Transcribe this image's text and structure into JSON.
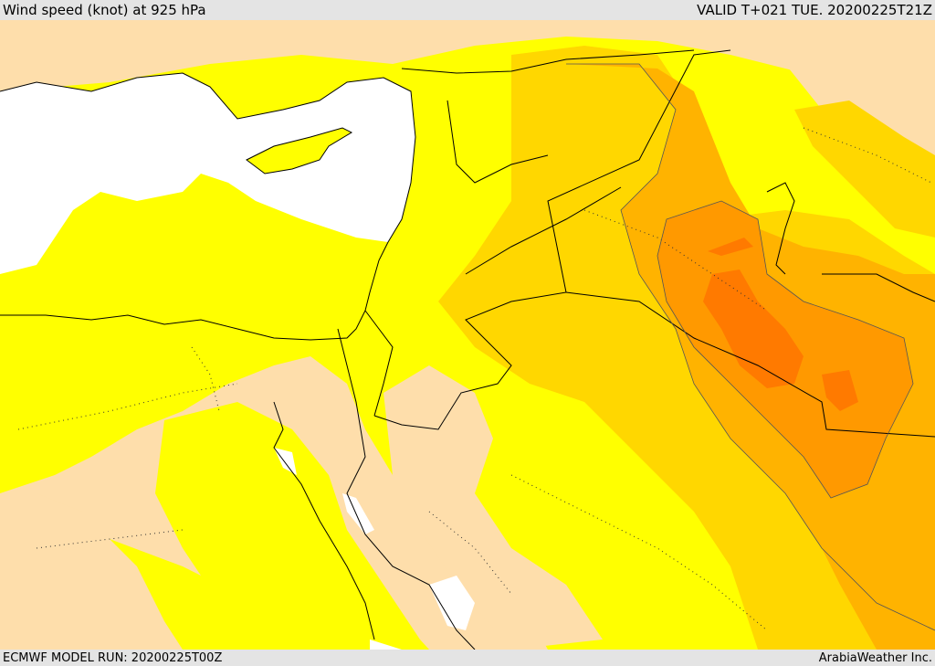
{
  "header": {
    "title": "Wind speed (knot) at 925 hPa",
    "valid": "VALID T+021 TUE. 20200225T21Z"
  },
  "footer": {
    "model_run": "ECMWF MODEL RUN: 20200225T00Z",
    "credit": "ArabiaWeather Inc."
  },
  "colors": {
    "sea_calm": "#ffffff",
    "level_1": "#fedeab",
    "level_2": "#ffff00",
    "level_3": "#ffd700",
    "level_4": "#ffb300",
    "level_5": "#ff9900",
    "level_6": "#ff7a00",
    "border": "#000000"
  }
}
